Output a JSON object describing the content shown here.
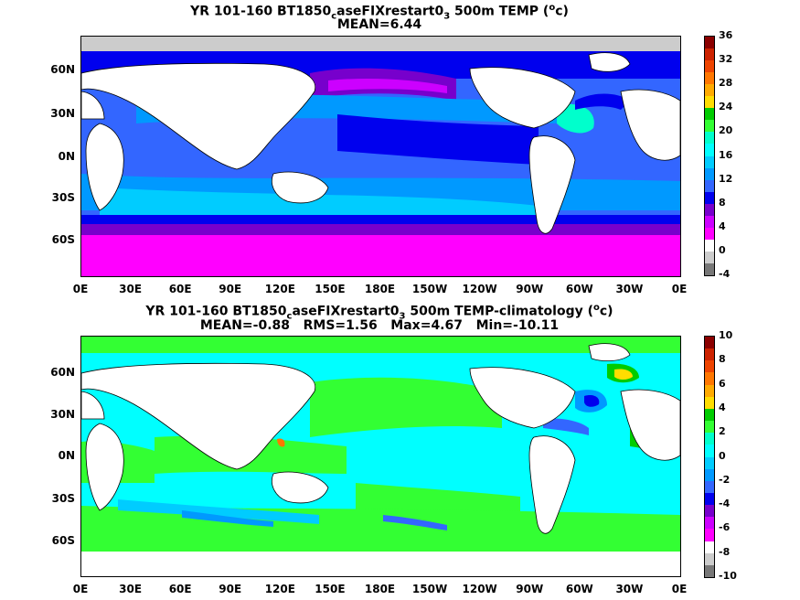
{
  "panels": [
    {
      "id": "temp",
      "title_prefix": "YR 101-160 BT1850",
      "title_sub1": "c",
      "title_mid": "aseFIXrestart0",
      "title_sub2": "3",
      "title_suffix": " 500m TEMP (",
      "title_sup": "o",
      "title_end": "c)",
      "stats": "MEAN=6.44",
      "lat_labels": [
        "60N",
        "30N",
        "0N",
        "30S",
        "60S"
      ],
      "lon_labels": [
        "0E",
        "30E",
        "60E",
        "90E",
        "120E",
        "150E",
        "180E",
        "150W",
        "120W",
        "90W",
        "60W",
        "30W",
        "0E"
      ],
      "colorbar_labels": [
        "36",
        "32",
        "28",
        "24",
        "20",
        "16",
        "12",
        "8",
        "4",
        "0",
        "-4"
      ],
      "colorbar_colors": [
        "#8b0000",
        "#cc2200",
        "#ee4400",
        "#ff7700",
        "#ffaa00",
        "#ffdd00",
        "#00cc00",
        "#33ff33",
        "#00ffcc",
        "#00ffff",
        "#00ccff",
        "#0099ff",
        "#3366ff",
        "#0000ee",
        "#7700cc",
        "#cc00ff",
        "#ff00ff",
        "#ffffff",
        "#cccccc",
        "#777777"
      ]
    },
    {
      "id": "anom",
      "title_prefix": "YR 101-160 BT1850",
      "title_sub1": "c",
      "title_mid": "aseFIXrestart0",
      "title_sub2": "3",
      "title_suffix": " 500m TEMP-climatology (",
      "title_sup": "o",
      "title_end": "c)",
      "stats": "MEAN=-0.88   RMS=1.56   Max=4.67   Min=-10.11",
      "lat_labels": [
        "60N",
        "30N",
        "0N",
        "30S",
        "60S"
      ],
      "lon_labels": [
        "0E",
        "30E",
        "60E",
        "90E",
        "120E",
        "150E",
        "180E",
        "150W",
        "120W",
        "90W",
        "60W",
        "30W",
        "0E"
      ],
      "colorbar_labels": [
        "10",
        "8",
        "6",
        "4",
        "2",
        "0",
        "-2",
        "-4",
        "-6",
        "-8",
        "-10"
      ],
      "colorbar_colors": [
        "#8b0000",
        "#cc2200",
        "#ee4400",
        "#ff7700",
        "#ffaa00",
        "#ffdd00",
        "#00cc00",
        "#33ff33",
        "#00ffcc",
        "#00ffff",
        "#00ccff",
        "#0099ff",
        "#3366ff",
        "#0000ee",
        "#7700cc",
        "#cc00ff",
        "#ff00ff",
        "#ffffff",
        "#cccccc",
        "#777777"
      ]
    }
  ]
}
